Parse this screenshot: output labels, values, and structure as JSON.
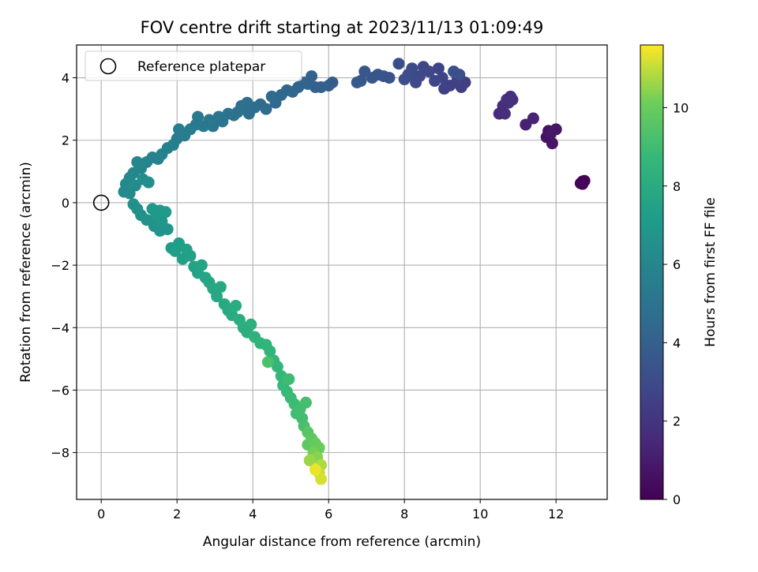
{
  "chart_data": {
    "type": "scatter",
    "title": "FOV centre drift starting at 2023/11/13 01:09:49",
    "xlabel": "Angular distance from reference (arcmin)",
    "ylabel": "Rotation from reference (arcmin)",
    "xlim": [
      -0.65,
      13.35
    ],
    "ylim": [
      -9.5,
      5.05
    ],
    "xticks": [
      0,
      2,
      4,
      6,
      8,
      10,
      12
    ],
    "yticks": [
      -8,
      -6,
      -4,
      -2,
      0,
      2,
      4
    ],
    "grid": true,
    "legend": {
      "placement": "top-left",
      "entries": [
        "Reference platepar"
      ]
    },
    "reference_point": {
      "x": 0,
      "y": 0,
      "label": "Reference platepar"
    },
    "colorbar": {
      "label": "Hours from first FF file",
      "colormap": "viridis",
      "range": [
        0,
        11.6
      ],
      "ticks": [
        0,
        2,
        4,
        6,
        8,
        10
      ]
    },
    "points": [
      {
        "x": 12.7,
        "y": 0.68,
        "h": 0.05
      },
      {
        "x": 12.65,
        "y": 0.62,
        "h": 0.1
      },
      {
        "x": 12.75,
        "y": 0.7,
        "h": 0.15
      },
      {
        "x": 12.7,
        "y": 0.6,
        "h": 0.2
      },
      {
        "x": 11.8,
        "y": 2.3,
        "h": 0.6
      },
      {
        "x": 11.75,
        "y": 2.1,
        "h": 0.65
      },
      {
        "x": 11.9,
        "y": 1.9,
        "h": 0.7
      },
      {
        "x": 12.0,
        "y": 2.35,
        "h": 0.75
      },
      {
        "x": 11.85,
        "y": 2.2,
        "h": 0.8
      },
      {
        "x": 11.2,
        "y": 2.5,
        "h": 1.2
      },
      {
        "x": 11.4,
        "y": 2.7,
        "h": 1.3
      },
      {
        "x": 10.5,
        "y": 2.85,
        "h": 1.6
      },
      {
        "x": 10.65,
        "y": 2.85,
        "h": 1.65
      },
      {
        "x": 10.6,
        "y": 3.1,
        "h": 1.7
      },
      {
        "x": 10.7,
        "y": 3.3,
        "h": 1.75
      },
      {
        "x": 10.8,
        "y": 3.4,
        "h": 1.8
      },
      {
        "x": 10.85,
        "y": 3.3,
        "h": 1.85
      },
      {
        "x": 10.75,
        "y": 3.2,
        "h": 1.9
      },
      {
        "x": 9.6,
        "y": 3.85,
        "h": 2.4
      },
      {
        "x": 9.5,
        "y": 3.7,
        "h": 2.45
      },
      {
        "x": 9.4,
        "y": 3.95,
        "h": 2.5
      },
      {
        "x": 9.2,
        "y": 3.75,
        "h": 2.55
      },
      {
        "x": 9.05,
        "y": 3.65,
        "h": 2.6
      },
      {
        "x": 9.0,
        "y": 4.0,
        "h": 2.65
      },
      {
        "x": 8.9,
        "y": 4.3,
        "h": 2.7
      },
      {
        "x": 8.8,
        "y": 3.9,
        "h": 2.75
      },
      {
        "x": 8.65,
        "y": 4.2,
        "h": 2.8
      },
      {
        "x": 8.5,
        "y": 4.35,
        "h": 2.85
      },
      {
        "x": 8.4,
        "y": 4.05,
        "h": 2.9
      },
      {
        "x": 8.3,
        "y": 3.85,
        "h": 2.95
      },
      {
        "x": 8.2,
        "y": 4.3,
        "h": 3.0
      },
      {
        "x": 8.1,
        "y": 4.1,
        "h": 3.05
      },
      {
        "x": 8.0,
        "y": 3.95,
        "h": 3.1
      },
      {
        "x": 7.85,
        "y": 4.45,
        "h": 3.15
      },
      {
        "x": 9.3,
        "y": 4.2,
        "h": 3.2
      },
      {
        "x": 9.45,
        "y": 4.1,
        "h": 3.25
      },
      {
        "x": 7.6,
        "y": 4.0,
        "h": 3.35
      },
      {
        "x": 7.45,
        "y": 4.05,
        "h": 3.4
      },
      {
        "x": 7.3,
        "y": 4.1,
        "h": 3.45
      },
      {
        "x": 7.15,
        "y": 4.0,
        "h": 3.5
      },
      {
        "x": 6.95,
        "y": 4.2,
        "h": 3.55
      },
      {
        "x": 6.85,
        "y": 3.9,
        "h": 3.6
      },
      {
        "x": 6.75,
        "y": 3.85,
        "h": 3.65
      },
      {
        "x": 6.1,
        "y": 3.85,
        "h": 3.85
      },
      {
        "x": 6.0,
        "y": 3.75,
        "h": 3.9
      },
      {
        "x": 5.8,
        "y": 3.7,
        "h": 3.95
      },
      {
        "x": 5.65,
        "y": 3.7,
        "h": 4.0
      },
      {
        "x": 5.55,
        "y": 4.05,
        "h": 4.05
      },
      {
        "x": 5.45,
        "y": 3.8,
        "h": 4.1
      },
      {
        "x": 5.35,
        "y": 3.85,
        "h": 4.15
      },
      {
        "x": 5.2,
        "y": 3.7,
        "h": 4.2
      },
      {
        "x": 5.05,
        "y": 3.55,
        "h": 4.25
      },
      {
        "x": 4.9,
        "y": 3.6,
        "h": 4.3
      },
      {
        "x": 4.75,
        "y": 3.45,
        "h": 4.35
      },
      {
        "x": 4.6,
        "y": 3.2,
        "h": 4.4
      },
      {
        "x": 4.5,
        "y": 3.4,
        "h": 4.45
      },
      {
        "x": 4.35,
        "y": 3.0,
        "h": 4.55
      },
      {
        "x": 4.2,
        "y": 3.15,
        "h": 4.6
      },
      {
        "x": 4.05,
        "y": 3.05,
        "h": 4.65
      },
      {
        "x": 3.9,
        "y": 2.85,
        "h": 4.7
      },
      {
        "x": 3.85,
        "y": 3.2,
        "h": 4.75
      },
      {
        "x": 3.7,
        "y": 3.1,
        "h": 4.8
      },
      {
        "x": 3.6,
        "y": 2.9,
        "h": 4.85
      },
      {
        "x": 3.5,
        "y": 2.8,
        "h": 4.9
      },
      {
        "x": 3.35,
        "y": 2.85,
        "h": 4.95
      },
      {
        "x": 3.2,
        "y": 2.6,
        "h": 5.05
      },
      {
        "x": 3.1,
        "y": 2.75,
        "h": 5.1
      },
      {
        "x": 2.95,
        "y": 2.45,
        "h": 5.15
      },
      {
        "x": 2.85,
        "y": 2.65,
        "h": 5.2
      },
      {
        "x": 2.7,
        "y": 2.45,
        "h": 5.25
      },
      {
        "x": 2.55,
        "y": 2.75,
        "h": 5.3
      },
      {
        "x": 2.5,
        "y": 2.5,
        "h": 5.35
      },
      {
        "x": 2.35,
        "y": 2.35,
        "h": 5.4
      },
      {
        "x": 2.2,
        "y": 2.15,
        "h": 5.45
      },
      {
        "x": 2.05,
        "y": 2.35,
        "h": 5.5
      },
      {
        "x": 2.0,
        "y": 2.05,
        "h": 5.55
      },
      {
        "x": 1.9,
        "y": 1.85,
        "h": 5.65
      },
      {
        "x": 1.75,
        "y": 1.75,
        "h": 5.7
      },
      {
        "x": 1.6,
        "y": 1.55,
        "h": 5.75
      },
      {
        "x": 1.5,
        "y": 1.4,
        "h": 5.8
      },
      {
        "x": 1.35,
        "y": 1.45,
        "h": 5.85
      },
      {
        "x": 1.2,
        "y": 1.3,
        "h": 5.9
      },
      {
        "x": 1.05,
        "y": 1.1,
        "h": 5.95
      },
      {
        "x": 0.95,
        "y": 1.3,
        "h": 6.0
      },
      {
        "x": 0.85,
        "y": 0.95,
        "h": 6.05
      },
      {
        "x": 0.75,
        "y": 0.8,
        "h": 6.1
      },
      {
        "x": 0.65,
        "y": 0.6,
        "h": 6.15
      },
      {
        "x": 0.6,
        "y": 0.35,
        "h": 6.2
      },
      {
        "x": 0.75,
        "y": 0.3,
        "h": 6.25
      },
      {
        "x": 0.9,
        "y": 0.55,
        "h": 6.3
      },
      {
        "x": 1.1,
        "y": 0.75,
        "h": 6.35
      },
      {
        "x": 1.25,
        "y": 0.65,
        "h": 6.4
      },
      {
        "x": 0.85,
        "y": -0.05,
        "h": 6.5
      },
      {
        "x": 0.95,
        "y": -0.2,
        "h": 6.55
      },
      {
        "x": 1.05,
        "y": -0.4,
        "h": 6.6
      },
      {
        "x": 1.2,
        "y": -0.55,
        "h": 6.65
      },
      {
        "x": 1.4,
        "y": -0.75,
        "h": 6.7
      },
      {
        "x": 1.55,
        "y": -0.9,
        "h": 6.75
      },
      {
        "x": 1.75,
        "y": -0.85,
        "h": 6.8
      },
      {
        "x": 1.6,
        "y": -0.6,
        "h": 6.85
      },
      {
        "x": 1.45,
        "y": -0.45,
        "h": 6.9
      },
      {
        "x": 1.35,
        "y": -0.2,
        "h": 6.95
      },
      {
        "x": 1.55,
        "y": -0.25,
        "h": 7.0
      },
      {
        "x": 1.7,
        "y": -0.3,
        "h": 7.05
      },
      {
        "x": 1.85,
        "y": -1.45,
        "h": 7.2
      },
      {
        "x": 1.95,
        "y": -1.55,
        "h": 7.25
      },
      {
        "x": 2.05,
        "y": -1.3,
        "h": 7.3
      },
      {
        "x": 2.15,
        "y": -1.8,
        "h": 7.35
      },
      {
        "x": 2.25,
        "y": -1.5,
        "h": 7.4
      },
      {
        "x": 2.35,
        "y": -1.7,
        "h": 7.45
      },
      {
        "x": 2.45,
        "y": -2.05,
        "h": 7.5
      },
      {
        "x": 2.55,
        "y": -2.25,
        "h": 7.55
      },
      {
        "x": 2.65,
        "y": -2.0,
        "h": 7.6
      },
      {
        "x": 2.75,
        "y": -2.4,
        "h": 7.65
      },
      {
        "x": 2.85,
        "y": -2.55,
        "h": 7.7
      },
      {
        "x": 2.95,
        "y": -2.75,
        "h": 7.75
      },
      {
        "x": 3.05,
        "y": -3.0,
        "h": 7.8
      },
      {
        "x": 3.15,
        "y": -2.7,
        "h": 7.85
      },
      {
        "x": 3.25,
        "y": -3.25,
        "h": 7.9
      },
      {
        "x": 3.35,
        "y": -3.45,
        "h": 7.95
      },
      {
        "x": 3.45,
        "y": -3.6,
        "h": 8.0
      },
      {
        "x": 3.55,
        "y": -3.3,
        "h": 8.05
      },
      {
        "x": 3.65,
        "y": -3.75,
        "h": 8.1
      },
      {
        "x": 3.75,
        "y": -4.0,
        "h": 8.15
      },
      {
        "x": 3.85,
        "y": -4.15,
        "h": 8.2
      },
      {
        "x": 3.95,
        "y": -3.9,
        "h": 8.25
      },
      {
        "x": 4.05,
        "y": -4.3,
        "h": 8.3
      },
      {
        "x": 4.2,
        "y": -4.5,
        "h": 8.45
      },
      {
        "x": 4.35,
        "y": -4.55,
        "h": 8.5
      },
      {
        "x": 4.45,
        "y": -4.75,
        "h": 8.55
      },
      {
        "x": 4.55,
        "y": -5.05,
        "h": 8.6
      },
      {
        "x": 4.65,
        "y": -5.25,
        "h": 8.65
      },
      {
        "x": 4.75,
        "y": -5.55,
        "h": 8.7
      },
      {
        "x": 4.8,
        "y": -5.85,
        "h": 8.75
      },
      {
        "x": 4.9,
        "y": -6.05,
        "h": 8.8
      },
      {
        "x": 5.0,
        "y": -6.25,
        "h": 8.85
      },
      {
        "x": 5.1,
        "y": -6.45,
        "h": 8.9
      },
      {
        "x": 4.95,
        "y": -5.65,
        "h": 8.95
      },
      {
        "x": 5.15,
        "y": -6.75,
        "h": 9.0
      },
      {
        "x": 5.25,
        "y": -6.6,
        "h": 9.05
      },
      {
        "x": 5.3,
        "y": -6.9,
        "h": 9.1
      },
      {
        "x": 5.4,
        "y": -6.4,
        "h": 9.15
      },
      {
        "x": 5.35,
        "y": -7.15,
        "h": 9.2
      },
      {
        "x": 4.4,
        "y": -5.1,
        "h": 9.25
      },
      {
        "x": 5.45,
        "y": -7.35,
        "h": 9.6
      },
      {
        "x": 5.55,
        "y": -7.55,
        "h": 9.7
      },
      {
        "x": 5.45,
        "y": -7.75,
        "h": 9.8
      },
      {
        "x": 5.65,
        "y": -7.7,
        "h": 9.9
      },
      {
        "x": 5.75,
        "y": -7.85,
        "h": 10.0
      },
      {
        "x": 5.6,
        "y": -8.0,
        "h": 10.2
      },
      {
        "x": 5.7,
        "y": -8.15,
        "h": 10.4
      },
      {
        "x": 5.5,
        "y": -8.25,
        "h": 10.6
      },
      {
        "x": 5.8,
        "y": -8.4,
        "h": 10.8
      },
      {
        "x": 5.75,
        "y": -8.65,
        "h": 11.0
      },
      {
        "x": 5.8,
        "y": -8.85,
        "h": 11.2
      },
      {
        "x": 5.65,
        "y": -8.55,
        "h": 11.4
      }
    ]
  }
}
